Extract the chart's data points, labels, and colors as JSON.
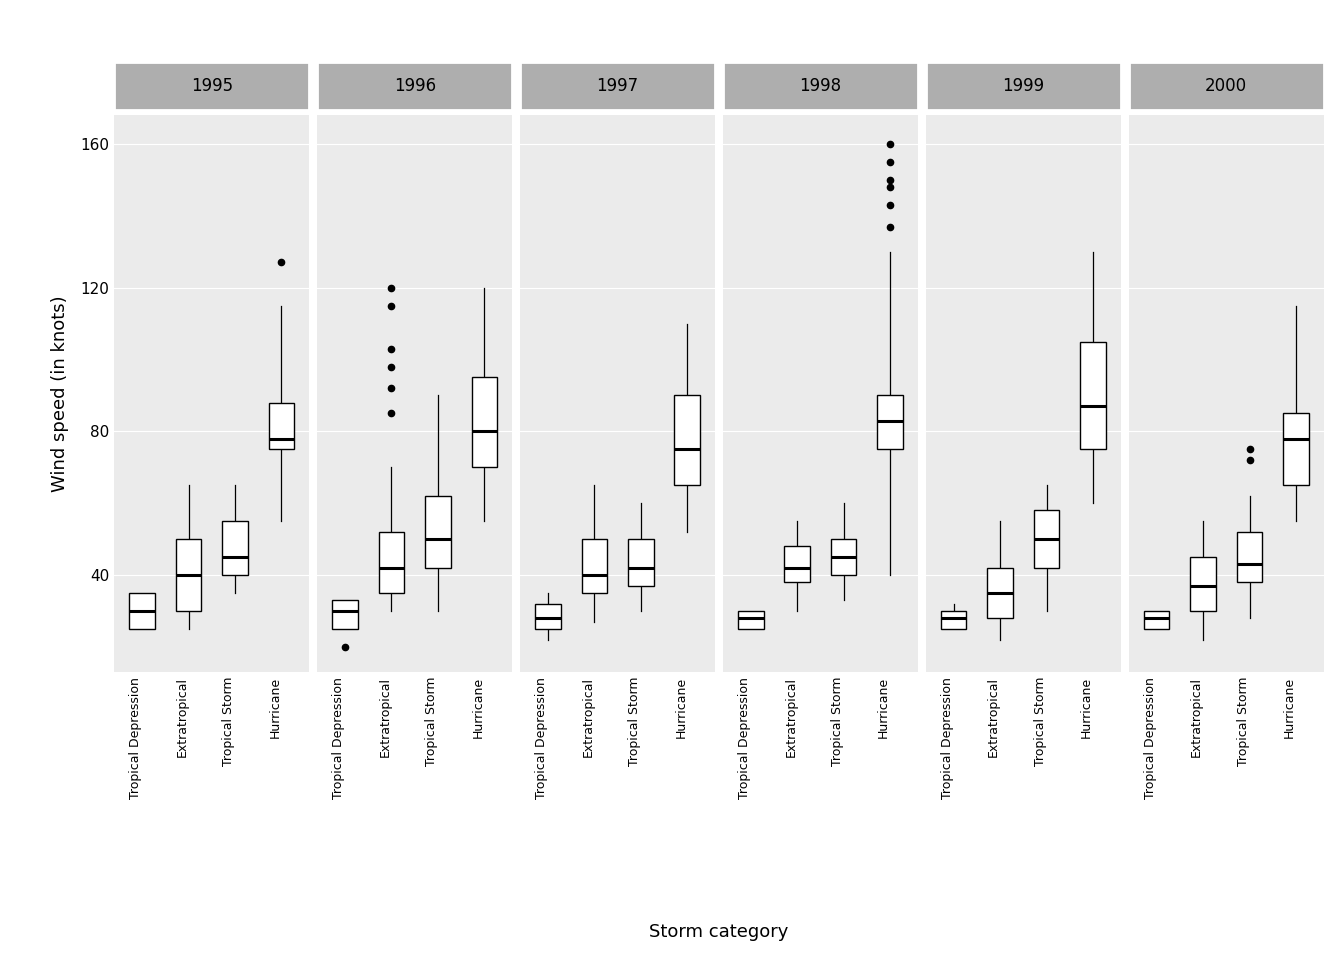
{
  "years": [
    "1995",
    "1996",
    "1997",
    "1998",
    "1999",
    "2000"
  ],
  "storm_types": [
    "Tropical Depression",
    "Extratropical",
    "Tropical Storm",
    "Hurricane"
  ],
  "ylabel": "Wind speed (in knots)",
  "xlabel": "Storm category",
  "background_color": "#FFFFFF",
  "panel_bg": "#EBEBEB",
  "grid_color": "#FFFFFF",
  "strip_bg": "#AEAEAE",
  "strip_text_color": "#000000",
  "box_fill": "#FFFFFF",
  "box_edge": "#000000",
  "median_color": "#000000",
  "whisker_color": "#000000",
  "flier_color": "#000000",
  "ylim": [
    13,
    168
  ],
  "yticks": [
    40,
    80,
    120,
    160
  ],
  "box_data": {
    "1995": {
      "Tropical Depression": {
        "q1": 25,
        "median": 30,
        "q3": 35,
        "whislo": 25,
        "whishi": 35,
        "fliers": []
      },
      "Extratropical": {
        "q1": 30,
        "median": 40,
        "q3": 50,
        "whislo": 25,
        "whishi": 65,
        "fliers": []
      },
      "Tropical Storm": {
        "q1": 40,
        "median": 45,
        "q3": 55,
        "whislo": 35,
        "whishi": 65,
        "fliers": []
      },
      "Hurricane": {
        "q1": 75,
        "median": 78,
        "q3": 88,
        "whislo": 55,
        "whishi": 115,
        "fliers": [
          127
        ]
      }
    },
    "1996": {
      "Tropical Depression": {
        "q1": 25,
        "median": 30,
        "q3": 33,
        "whislo": 25,
        "whishi": 33,
        "fliers": [
          20
        ]
      },
      "Extratropical": {
        "q1": 35,
        "median": 42,
        "q3": 52,
        "whislo": 30,
        "whishi": 70,
        "fliers": [
          85,
          92,
          98,
          103,
          115,
          120
        ]
      },
      "Tropical Storm": {
        "q1": 42,
        "median": 50,
        "q3": 62,
        "whislo": 30,
        "whishi": 90,
        "fliers": []
      },
      "Hurricane": {
        "q1": 70,
        "median": 80,
        "q3": 95,
        "whislo": 55,
        "whishi": 120,
        "fliers": []
      }
    },
    "1997": {
      "Tropical Depression": {
        "q1": 25,
        "median": 28,
        "q3": 32,
        "whislo": 22,
        "whishi": 35,
        "fliers": []
      },
      "Extratropical": {
        "q1": 35,
        "median": 40,
        "q3": 50,
        "whislo": 27,
        "whishi": 65,
        "fliers": []
      },
      "Tropical Storm": {
        "q1": 37,
        "median": 42,
        "q3": 50,
        "whislo": 30,
        "whishi": 60,
        "fliers": []
      },
      "Hurricane": {
        "q1": 65,
        "median": 75,
        "q3": 90,
        "whislo": 52,
        "whishi": 110,
        "fliers": []
      }
    },
    "1998": {
      "Tropical Depression": {
        "q1": 25,
        "median": 28,
        "q3": 30,
        "whislo": 25,
        "whishi": 30,
        "fliers": []
      },
      "Extratropical": {
        "q1": 38,
        "median": 42,
        "q3": 48,
        "whislo": 30,
        "whishi": 55,
        "fliers": []
      },
      "Tropical Storm": {
        "q1": 40,
        "median": 45,
        "q3": 50,
        "whislo": 33,
        "whishi": 60,
        "fliers": []
      },
      "Hurricane": {
        "q1": 75,
        "median": 83,
        "q3": 90,
        "whislo": 40,
        "whishi": 130,
        "fliers": [
          137,
          143,
          148,
          150,
          155,
          160
        ]
      }
    },
    "1999": {
      "Tropical Depression": {
        "q1": 25,
        "median": 28,
        "q3": 30,
        "whislo": 25,
        "whishi": 32,
        "fliers": []
      },
      "Extratropical": {
        "q1": 28,
        "median": 35,
        "q3": 42,
        "whislo": 22,
        "whishi": 55,
        "fliers": []
      },
      "Tropical Storm": {
        "q1": 42,
        "median": 50,
        "q3": 58,
        "whislo": 30,
        "whishi": 65,
        "fliers": []
      },
      "Hurricane": {
        "q1": 75,
        "median": 87,
        "q3": 105,
        "whislo": 60,
        "whishi": 130,
        "fliers": []
      }
    },
    "2000": {
      "Tropical Depression": {
        "q1": 25,
        "median": 28,
        "q3": 30,
        "whislo": 25,
        "whishi": 30,
        "fliers": []
      },
      "Extratropical": {
        "q1": 30,
        "median": 37,
        "q3": 45,
        "whislo": 22,
        "whishi": 55,
        "fliers": []
      },
      "Tropical Storm": {
        "q1": 38,
        "median": 43,
        "q3": 52,
        "whislo": 28,
        "whishi": 62,
        "fliers": [
          72,
          75
        ]
      },
      "Hurricane": {
        "q1": 65,
        "median": 78,
        "q3": 85,
        "whislo": 55,
        "whishi": 115,
        "fliers": []
      }
    }
  }
}
